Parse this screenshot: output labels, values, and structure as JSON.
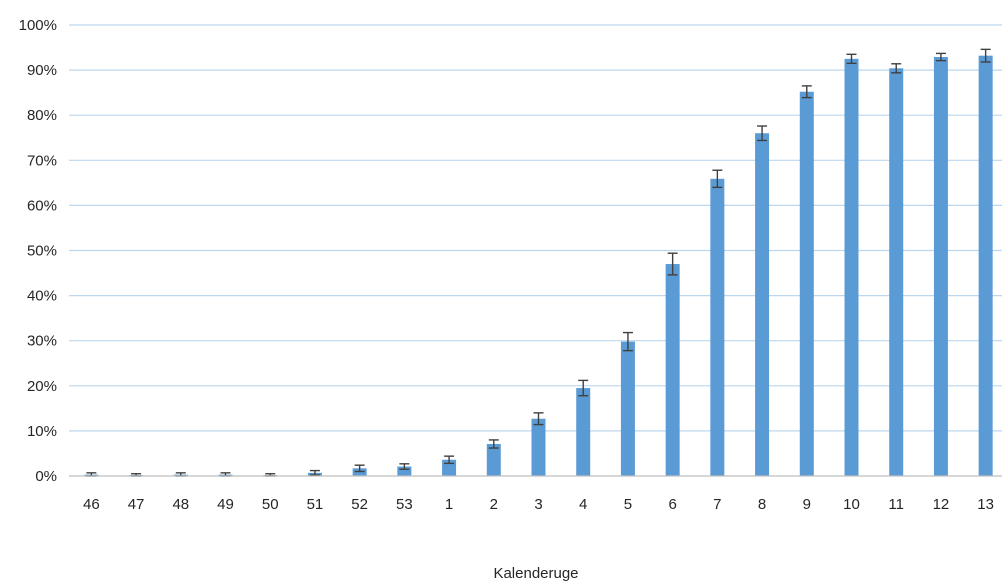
{
  "chart_data": {
    "type": "bar",
    "title": "",
    "xlabel": "Kalenderuge",
    "ylabel": "",
    "ylim": [
      0,
      100
    ],
    "y_tick_values": [
      0,
      10,
      20,
      30,
      40,
      50,
      60,
      70,
      80,
      90,
      100
    ],
    "y_tick_labels": [
      "0%",
      "10%",
      "20%",
      "30%",
      "40%",
      "50%",
      "60%",
      "70%",
      "80%",
      "90%",
      "100%"
    ],
    "grid": "horizontal",
    "legend": "none",
    "categories": [
      "46",
      "47",
      "48",
      "49",
      "50",
      "51",
      "52",
      "53",
      "1",
      "2",
      "3",
      "4",
      "5",
      "6",
      "7",
      "8",
      "9",
      "10",
      "11",
      "12",
      "13"
    ],
    "values": [
      0.3,
      0.2,
      0.3,
      0.3,
      0.2,
      0.7,
      1.7,
      2.1,
      3.6,
      7.1,
      12.7,
      19.5,
      29.8,
      47.0,
      65.9,
      76.0,
      85.2,
      92.5,
      90.4,
      92.9,
      93.2
    ],
    "error": [
      0.4,
      0.3,
      0.4,
      0.4,
      0.3,
      0.5,
      0.7,
      0.6,
      0.8,
      0.9,
      1.3,
      1.7,
      2.0,
      2.4,
      1.9,
      1.6,
      1.3,
      1.0,
      1.0,
      0.8,
      1.4
    ],
    "colors": {
      "bar": "#5B9BD5",
      "grid": "#BDD7EE",
      "error_bar": "#404040",
      "axis": "#BFBFBF"
    }
  }
}
